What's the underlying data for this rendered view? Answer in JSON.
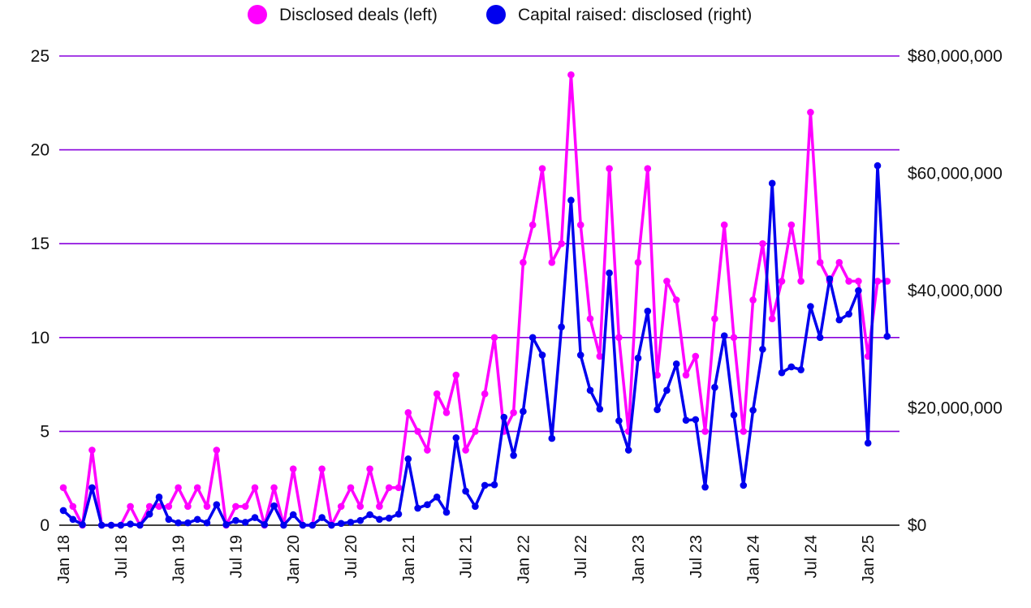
{
  "chart_data": {
    "type": "line",
    "title": "",
    "dual_axis": true,
    "legend_position": "top-center",
    "grid": true,
    "x": [
      "Jan 18",
      "Feb 18",
      "Mar 18",
      "Apr 18",
      "May 18",
      "Jun 18",
      "Jul 18",
      "Aug 18",
      "Sep 18",
      "Oct 18",
      "Nov 18",
      "Dec 18",
      "Jan 19",
      "Feb 19",
      "Mar 19",
      "Apr 19",
      "May 19",
      "Jun 19",
      "Jul 19",
      "Aug 19",
      "Sep 19",
      "Oct 19",
      "Nov 19",
      "Dec 19",
      "Jan 20",
      "Feb 20",
      "Mar 20",
      "Apr 20",
      "May 20",
      "Jun 20",
      "Jul 20",
      "Aug 20",
      "Sep 20",
      "Oct 20",
      "Nov 20",
      "Dec 20",
      "Jan 21",
      "Feb 21",
      "Mar 21",
      "Apr 21",
      "May 21",
      "Jun 21",
      "Jul 21",
      "Aug 21",
      "Sep 21",
      "Oct 21",
      "Nov 21",
      "Dec 21",
      "Jan 22",
      "Feb 22",
      "Mar 22",
      "Apr 22",
      "May 22",
      "Jun 22",
      "Jul 22",
      "Aug 22",
      "Sep 22",
      "Oct 22",
      "Nov 22",
      "Dec 22",
      "Jan 23",
      "Feb 23",
      "Mar 23",
      "Apr 23",
      "May 23",
      "Jun 23",
      "Jul 23",
      "Aug 23",
      "Sep 23",
      "Oct 23",
      "Nov 23",
      "Dec 23",
      "Jan 24",
      "Feb 24",
      "Mar 24",
      "Apr 24",
      "May 24",
      "Jun 24",
      "Jul 24",
      "Aug 24",
      "Sep 24",
      "Oct 24",
      "Nov 24",
      "Dec 24",
      "Jan 25",
      "Feb 25",
      "Mar 25"
    ],
    "x_tick_labels": [
      "Jan 18",
      "Jul 18",
      "Jan 19",
      "Jul 19",
      "Jan 20",
      "Jul 20",
      "Jan 21",
      "Jul 21",
      "Jan 22",
      "Jul 22",
      "Jan 23",
      "Jul 23",
      "Jan 24",
      "Jul 24",
      "Jan 25"
    ],
    "x_tick_every": 6,
    "y_left": {
      "label": "",
      "ylim": [
        0,
        25
      ],
      "ticks": [
        0,
        5,
        10,
        15,
        20,
        25
      ],
      "tick_labels": [
        "0",
        "5",
        "10",
        "15",
        "20",
        "25"
      ]
    },
    "y_right": {
      "label": "",
      "ylim": [
        0,
        80000000
      ],
      "ticks": [
        0,
        20000000,
        40000000,
        60000000,
        80000000
      ],
      "tick_labels": [
        "$0",
        "$20,000,000",
        "$40,000,000",
        "$60,000,000",
        "$80,000,000"
      ]
    },
    "series": [
      {
        "name": "Disclosed deals (left)",
        "axis": "left",
        "color": "#ff00ff",
        "values": [
          2,
          1,
          0,
          4,
          0,
          0,
          0,
          1,
          0,
          1,
          1,
          1,
          2,
          1,
          2,
          1,
          4,
          0,
          1,
          1,
          2,
          0,
          2,
          0,
          3,
          0,
          0,
          3,
          0,
          1,
          2,
          1,
          3,
          1,
          2,
          2,
          6,
          5,
          4,
          7,
          6,
          8,
          4,
          5,
          7,
          10,
          5,
          6,
          14,
          16,
          19,
          14,
          15,
          24,
          16,
          11,
          9,
          19,
          10,
          5,
          14,
          19,
          8,
          13,
          12,
          8,
          9,
          5,
          11,
          16,
          10,
          5,
          12,
          15,
          11,
          13,
          16,
          13,
          22,
          14,
          13,
          14,
          13,
          13,
          9,
          13,
          13
        ]
      },
      {
        "name": "Capital raised: disclosed (right)",
        "axis": "right",
        "color": "#0000ee",
        "values": [
          2500000,
          1000000,
          100000,
          6400000,
          0,
          0,
          0,
          200000,
          0,
          1900000,
          4800000,
          1000000,
          400000,
          400000,
          1000000,
          400000,
          3500000,
          100000,
          800000,
          500000,
          1300000,
          100000,
          3300000,
          0,
          1800000,
          0,
          0,
          1300000,
          0,
          300000,
          500000,
          800000,
          1800000,
          1000000,
          1200000,
          1900000,
          11300000,
          2900000,
          3500000,
          4800000,
          2200000,
          14900000,
          5800000,
          3200000,
          6800000,
          6900000,
          18400000,
          11900000,
          19400000,
          32000000,
          29000000,
          14800000,
          33800000,
          55400000,
          29000000,
          23000000,
          19800000,
          43000000,
          17800000,
          12800000,
          28500000,
          36500000,
          19700000,
          23000000,
          27500000,
          17900000,
          18000000,
          6500000,
          23500000,
          32300000,
          18800000,
          6800000,
          19600000,
          30000000,
          58300000,
          26000000,
          27000000,
          26500000,
          37300000,
          32000000,
          42000000,
          35000000,
          36000000,
          40000000,
          14000000,
          61300000,
          32200000
        ]
      }
    ]
  }
}
